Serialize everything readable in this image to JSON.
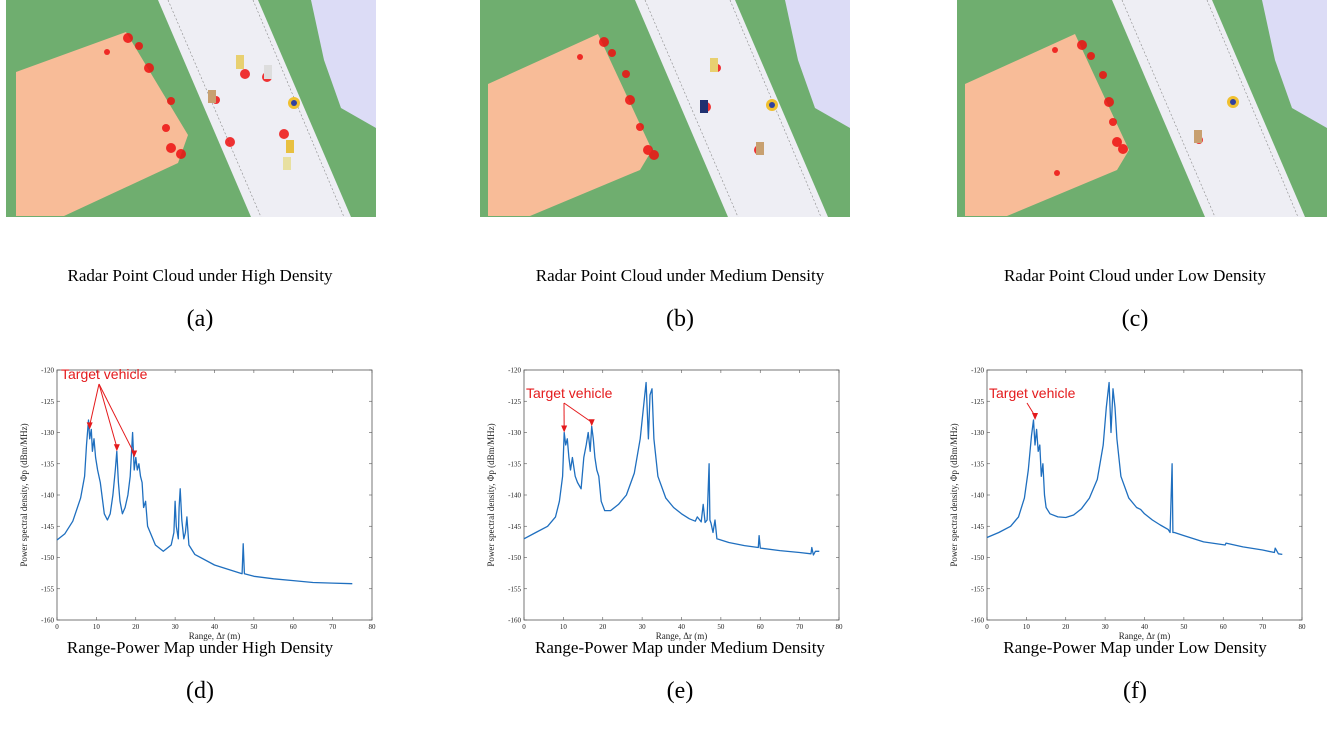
{
  "panels": [
    {
      "caption": "Radar Point Cloud under High Density",
      "label": "(a)"
    },
    {
      "caption": "Radar Point Cloud under Medium Density",
      "label": "(b)"
    },
    {
      "caption": "Radar Point Cloud under Low Density",
      "label": "(c)"
    }
  ],
  "plots": [
    {
      "caption": "Range-Power Map under High Density",
      "label": "(d)",
      "annotation": "Target vehicle"
    },
    {
      "caption": "Range-Power Map under Medium Density",
      "label": "(e)",
      "annotation": "Target vehicle"
    },
    {
      "caption": "Range-Power Map under Low Density",
      "label": "(f)",
      "annotation": "Target vehicle"
    }
  ],
  "axes": {
    "xlabel": "Range, Δr (m)",
    "ylabel": "Power spectral density, Φp (dBm/MHz)",
    "xticks": [
      0,
      10,
      20,
      30,
      40,
      50,
      60,
      70,
      80
    ],
    "yticks": [
      -120,
      -125,
      -130,
      -135,
      -140,
      -145,
      -150,
      -155,
      -160
    ],
    "xlim": [
      0,
      80
    ],
    "ylim": [
      -160,
      -120
    ]
  },
  "colors": {
    "grass": "#6fae6f",
    "building": "#f8bc98",
    "road": "#eeeef4",
    "water": "#dcdcf6",
    "line": "#1f6fbf",
    "annotation": "#e41a1c"
  },
  "chart_data": [
    {
      "type": "line",
      "title": "",
      "xlabel": "Range, Δr (m)",
      "ylabel": "Power spectral density, Φp (dBm/MHz)",
      "xlim": [
        0,
        80
      ],
      "ylim": [
        -160,
        -120
      ],
      "x": [
        0,
        2,
        4,
        6,
        7,
        7.5,
        8,
        8.3,
        8.7,
        9,
        9.4,
        9.8,
        10.3,
        11,
        12,
        12.8,
        13.5,
        14.2,
        14.8,
        15.2,
        15.6,
        16,
        16.6,
        17.3,
        18,
        18.6,
        19.2,
        19.6,
        20,
        20.4,
        20.8,
        21.2,
        21.6,
        22,
        22.5,
        23,
        25,
        27,
        29,
        29.7,
        30,
        30.3,
        30.8,
        31,
        31.3,
        31.7,
        32.2,
        32.6,
        33,
        33.5,
        35,
        40,
        43,
        45,
        47,
        47.3,
        47.6,
        50,
        55,
        60,
        65,
        70,
        75
      ],
      "values": [
        -147.2,
        -146.2,
        -144.2,
        -140.5,
        -137,
        -132,
        -128,
        -131,
        -129.5,
        -133,
        -131,
        -134,
        -136,
        -138,
        -143,
        -144,
        -143,
        -140,
        -136,
        -133,
        -138,
        -141,
        -143,
        -142,
        -140,
        -137,
        -130,
        -136,
        -134,
        -136,
        -135,
        -137,
        -138,
        -142,
        -141,
        -145,
        -148,
        -149,
        -148,
        -146,
        -141,
        -145,
        -147,
        -142,
        -139,
        -144,
        -147,
        -146,
        -143.5,
        -148,
        -149.5,
        -151.2,
        -151.8,
        -152.2,
        -152.6,
        -147.8,
        -152.6,
        -153,
        -153.4,
        -153.7,
        -154,
        -154.1,
        -154.2
      ]
    },
    {
      "type": "line",
      "title": "",
      "xlabel": "Range, Δr (m)",
      "ylabel": "Power spectral density, Φp (dBm/MHz)",
      "xlim": [
        0,
        80
      ],
      "ylim": [
        -160,
        -120
      ],
      "x": [
        0,
        3,
        6,
        8,
        9,
        9.8,
        10.2,
        10.6,
        11,
        11.4,
        11.8,
        12.3,
        13,
        13.6,
        14.5,
        15.2,
        15.8,
        16.3,
        16.8,
        17.2,
        17.6,
        18,
        18.5,
        19,
        19.6,
        20.5,
        22,
        24,
        26,
        28,
        29.5,
        30.5,
        31,
        31.6,
        32,
        32.5,
        33,
        34,
        36,
        38,
        40,
        42,
        43.5,
        44,
        45,
        45.5,
        46,
        46.5,
        47,
        47.2,
        47.5,
        48,
        48.5,
        49,
        52,
        56,
        59.5,
        59.7,
        60,
        65,
        70,
        72.9,
        73.1,
        73.5,
        74,
        75
      ],
      "values": [
        -147,
        -146,
        -145,
        -143.5,
        -141,
        -137,
        -130,
        -132,
        -131,
        -134,
        -136,
        -134,
        -137,
        -138,
        -139,
        -134,
        -132,
        -130,
        -133,
        -129,
        -131,
        -134,
        -136,
        -137,
        -141,
        -142.5,
        -142.5,
        -141.5,
        -140,
        -136.5,
        -131,
        -125,
        -122,
        -131,
        -124,
        -123,
        -131,
        -137,
        -140.5,
        -142,
        -143,
        -143.8,
        -144.2,
        -143.5,
        -144.3,
        -141.5,
        -144.4,
        -144,
        -135,
        -144,
        -144.5,
        -146,
        -144,
        -147,
        -147.6,
        -148.1,
        -148.4,
        -146.5,
        -148.5,
        -148.9,
        -149.2,
        -149.4,
        -148.4,
        -149.6,
        -149,
        -149
      ]
    },
    {
      "type": "line",
      "title": "",
      "xlabel": "Range, Δr (m)",
      "ylabel": "Power spectral density, Φp (dBm/MHz)",
      "xlim": [
        0,
        80
      ],
      "ylim": [
        -160,
        -120
      ],
      "x": [
        0,
        3,
        6,
        8,
        9.5,
        10.5,
        11.3,
        11.8,
        12.2,
        12.6,
        13,
        13.4,
        13.8,
        14.2,
        14.6,
        15,
        16,
        18,
        20,
        22,
        24,
        26,
        28,
        29.5,
        30.3,
        31,
        31.5,
        32,
        32.5,
        33,
        34,
        36,
        38,
        39,
        40,
        42,
        44,
        46,
        46.5,
        47,
        47.2,
        47.6,
        50,
        55,
        60.5,
        60.7,
        65,
        70,
        73,
        73.2,
        74,
        75
      ],
      "values": [
        -146.8,
        -146,
        -145,
        -143.5,
        -140.5,
        -136,
        -130.5,
        -128,
        -132,
        -129.5,
        -133,
        -132,
        -137,
        -135,
        -140,
        -142,
        -143,
        -143.5,
        -143.6,
        -143.2,
        -142.2,
        -140.5,
        -137.5,
        -132,
        -126,
        -122,
        -130,
        -123,
        -126,
        -131,
        -137,
        -140.5,
        -142,
        -142.3,
        -143,
        -144,
        -144.8,
        -145.5,
        -146,
        -135,
        -146,
        -146,
        -146.5,
        -147.5,
        -148,
        -147.7,
        -148.3,
        -148.8,
        -149.2,
        -148.5,
        -149.4,
        -149.5
      ]
    }
  ]
}
